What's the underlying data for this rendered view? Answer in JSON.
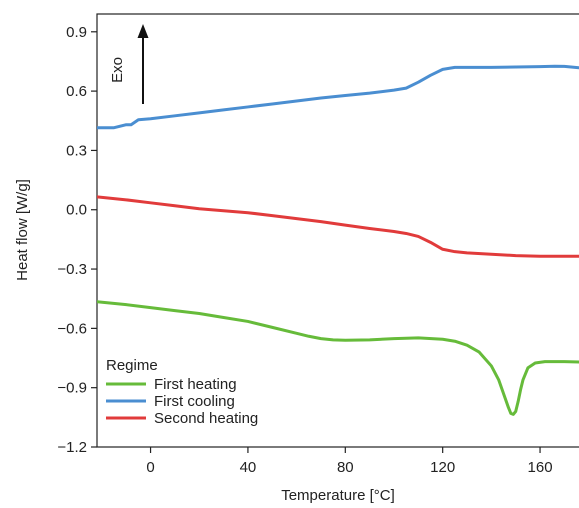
{
  "chart_data": {
    "type": "line",
    "xlabel": "Temperature [°C]",
    "ylabel": "Heat flow [W/g]",
    "xlim": [
      -22,
      176
    ],
    "ylim": [
      -1.2,
      0.99
    ],
    "xticks": [
      0,
      40,
      80,
      120,
      160
    ],
    "yticks": [
      0.9,
      0.6,
      0.3,
      0.0,
      -0.3,
      -0.6,
      -0.9,
      -1.2
    ],
    "ytick_labels": [
      "0.9",
      "0.6",
      "0.3",
      "0.0",
      "−0.3",
      "−0.6",
      "−0.9",
      "−1.2"
    ],
    "grid": false,
    "legend": {
      "title": "Regime",
      "placement": "bottom-left"
    },
    "annotation": {
      "text": "Exo",
      "arrow": "up"
    },
    "series": [
      {
        "name": "First heating",
        "color": "#66bb3a",
        "x": [
          -22,
          -10,
          0,
          10,
          20,
          30,
          40,
          50,
          60,
          65,
          70,
          75,
          80,
          90,
          100,
          110,
          120,
          125,
          130,
          135,
          140,
          143,
          145,
          147,
          148,
          149,
          150,
          151,
          152,
          153,
          155,
          158,
          162,
          170,
          176
        ],
        "y": [
          -0.465,
          -0.48,
          -0.495,
          -0.51,
          -0.525,
          -0.545,
          -0.565,
          -0.595,
          -0.625,
          -0.64,
          -0.652,
          -0.658,
          -0.66,
          -0.658,
          -0.652,
          -0.648,
          -0.655,
          -0.665,
          -0.685,
          -0.72,
          -0.79,
          -0.86,
          -0.93,
          -1.0,
          -1.03,
          -1.035,
          -1.02,
          -0.97,
          -0.91,
          -0.86,
          -0.8,
          -0.775,
          -0.768,
          -0.768,
          -0.77
        ]
      },
      {
        "name": "First cooling",
        "color": "#4a8ed1",
        "x": [
          -22,
          -15,
          -10,
          -8,
          -5,
          0,
          10,
          20,
          30,
          40,
          50,
          60,
          70,
          80,
          90,
          100,
          105,
          110,
          115,
          120,
          125,
          130,
          140,
          150,
          160,
          166,
          170,
          176
        ],
        "y": [
          0.415,
          0.415,
          0.43,
          0.43,
          0.455,
          0.46,
          0.475,
          0.49,
          0.505,
          0.52,
          0.535,
          0.55,
          0.565,
          0.578,
          0.59,
          0.605,
          0.615,
          0.645,
          0.68,
          0.71,
          0.72,
          0.72,
          0.72,
          0.722,
          0.724,
          0.726,
          0.725,
          0.718
        ]
      },
      {
        "name": "Second heating",
        "color": "#e13b3b",
        "x": [
          -22,
          -10,
          0,
          10,
          20,
          30,
          40,
          50,
          60,
          70,
          80,
          90,
          100,
          105,
          110,
          115,
          120,
          125,
          130,
          140,
          150,
          160,
          170,
          176
        ],
        "y": [
          0.065,
          0.05,
          0.035,
          0.02,
          0.005,
          -0.005,
          -0.015,
          -0.03,
          -0.045,
          -0.06,
          -0.078,
          -0.095,
          -0.11,
          -0.12,
          -0.135,
          -0.165,
          -0.2,
          -0.212,
          -0.218,
          -0.225,
          -0.232,
          -0.235,
          -0.235,
          -0.235
        ]
      }
    ]
  }
}
